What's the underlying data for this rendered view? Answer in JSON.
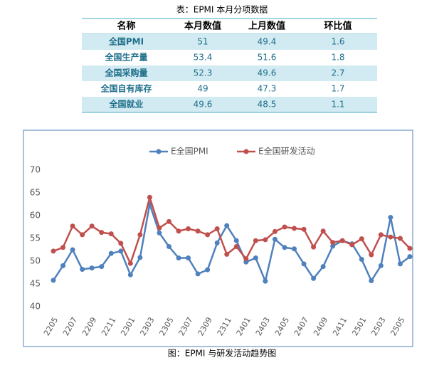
{
  "table": {
    "caption": "表：EPMI 本月分项数据",
    "header": [
      "名称",
      "本月数值",
      "上月数值",
      "环比值"
    ],
    "rows": [
      [
        "全国PMI",
        51,
        49.4,
        1.6
      ],
      [
        "全国生产量",
        53.4,
        51.6,
        1.8
      ],
      [
        "全国采购量",
        52.3,
        49.6,
        2.7
      ],
      [
        "全国自有库存",
        49,
        47.3,
        1.7
      ],
      [
        "全国就业",
        49.6,
        48.5,
        1.1
      ]
    ]
  },
  "chart_data": {
    "type": "line",
    "caption": "图：EPMI 与研发活动趋势图",
    "categories": [
      "2205",
      null,
      "2207",
      null,
      "2209",
      null,
      "2211",
      null,
      "2301",
      null,
      "2303",
      null,
      "2305",
      null,
      "2307",
      null,
      "2309",
      null,
      "2311",
      null,
      "2401",
      null,
      "2403",
      null,
      "2405",
      null,
      "2407",
      null,
      "2409",
      null,
      "2411",
      null,
      "2501",
      null,
      "2503",
      null,
      "2505",
      null
    ],
    "series": [
      {
        "name": "E全国PMI",
        "color": "#4f81bd",
        "values": [
          45.8,
          49,
          52.5,
          48.2,
          48.5,
          48.8,
          51.7,
          52.2,
          47,
          50.8,
          62.5,
          56.2,
          53.2,
          50.7,
          50.7,
          47.2,
          48.1,
          54,
          57.8,
          54.5,
          49.8,
          50.7,
          45.6,
          54.8,
          53,
          52.7,
          49.4,
          46.2,
          48.8,
          53.3,
          54.5,
          53.8,
          50.4,
          45.7,
          49,
          59.6,
          49.4,
          51
        ]
      },
      {
        "name": "E全国研发活动",
        "color": "#c0504d",
        "values": [
          52.2,
          53,
          57.7,
          55.8,
          57.7,
          56.3,
          56,
          53.9,
          49.5,
          55.8,
          64,
          57.3,
          58.7,
          56.6,
          57.1,
          56.6,
          55.8,
          57.1,
          51.5,
          53.2,
          50.5,
          54.5,
          54.7,
          56.5,
          57.5,
          57.2,
          57,
          53.1,
          56.6,
          54.1,
          54.5,
          53.6,
          54.9,
          51.4,
          55.8,
          55.3,
          55,
          52.8
        ]
      }
    ],
    "ylim": [
      40,
      70
    ],
    "yticks": [
      40,
      45,
      50,
      55,
      60,
      65,
      70
    ],
    "grid": false,
    "legend": "top"
  }
}
